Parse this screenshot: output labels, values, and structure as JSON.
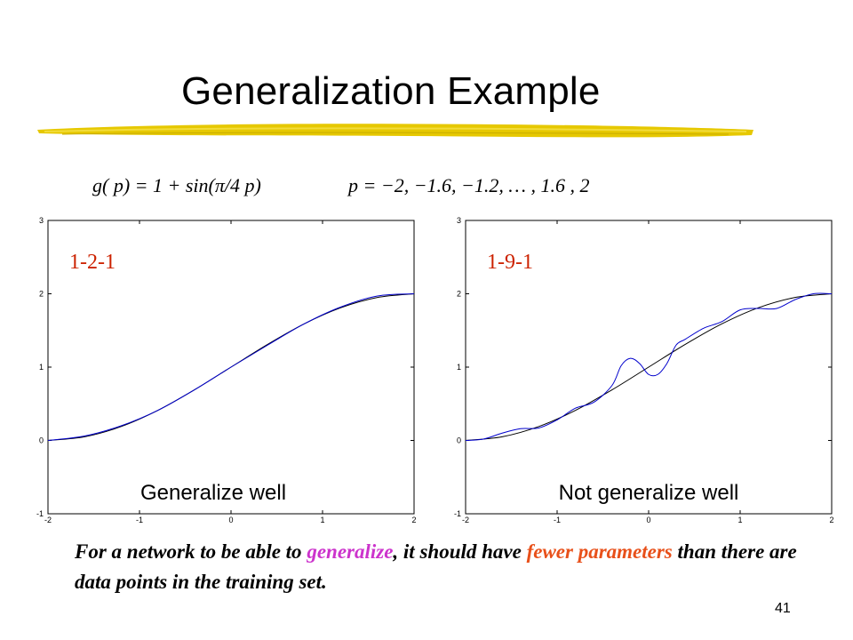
{
  "slide": {
    "title": "Generalization Example",
    "formula_left": "g( p)  =  1 + sin(π/4 p)",
    "formula_right": "p  = −2, −1.6, −1.2, … , 1.6 , 2",
    "statement": {
      "part1": "For a network to be able to ",
      "highlight1": "generalize",
      "part2": ", it should have ",
      "highlight2": "fewer parameters",
      "part3": " than there are data points in the training set."
    },
    "page_number": "41",
    "colors": {
      "accent_red": "#cc2200",
      "pink": "#cc33cc",
      "orange": "#e8501a",
      "curve_blue": "#0000cc",
      "underline_yellow": "#e6c800"
    }
  },
  "chart_data": [
    {
      "type": "line",
      "label": "1-2-1",
      "caption": "Generalize well",
      "xlim": [
        -2,
        2
      ],
      "ylim": [
        -1,
        3
      ],
      "xticks": [
        "-2",
        "-1",
        "0",
        "1",
        "2"
      ],
      "yticks": [
        "-1",
        "0",
        "1",
        "2",
        "3"
      ],
      "series": [
        {
          "color": "#000000",
          "x": [
            -2,
            -1.6,
            -1.2,
            -0.8,
            -0.4,
            0,
            0.4,
            0.8,
            1.2,
            1.6,
            2
          ],
          "y": [
            0,
            0.05,
            0.19,
            0.41,
            0.69,
            1,
            1.31,
            1.59,
            1.81,
            1.95,
            2
          ]
        },
        {
          "color": "#0000cc",
          "x": [
            -2,
            -1.6,
            -1.2,
            -0.8,
            -0.4,
            0,
            0.4,
            0.8,
            1.2,
            1.6,
            2
          ],
          "y": [
            0,
            0.06,
            0.2,
            0.41,
            0.69,
            1,
            1.3,
            1.59,
            1.82,
            1.97,
            2
          ]
        }
      ]
    },
    {
      "type": "line",
      "label": "1-9-1",
      "caption": "Not generalize well",
      "xlim": [
        -2,
        2
      ],
      "ylim": [
        -1,
        3
      ],
      "xticks": [
        "-2",
        "-1",
        "0",
        "1",
        "2"
      ],
      "yticks": [
        "-1",
        "0",
        "1",
        "2",
        "3"
      ],
      "series": [
        {
          "color": "#000000",
          "x": [
            -2,
            -1.6,
            -1.2,
            -0.8,
            -0.4,
            0,
            0.4,
            0.8,
            1.2,
            1.6,
            2
          ],
          "y": [
            0,
            0.05,
            0.19,
            0.41,
            0.69,
            1,
            1.31,
            1.59,
            1.81,
            1.95,
            2
          ]
        },
        {
          "color": "#0000cc",
          "x": [
            -2,
            -1.8,
            -1.6,
            -1.4,
            -1.2,
            -1.0,
            -0.8,
            -0.6,
            -0.4,
            -0.3,
            -0.2,
            -0.1,
            0,
            0.1,
            0.2,
            0.3,
            0.4,
            0.6,
            0.8,
            1.0,
            1.2,
            1.4,
            1.6,
            1.8,
            2
          ],
          "y": [
            0,
            0.02,
            0.1,
            0.16,
            0.17,
            0.28,
            0.44,
            0.52,
            0.75,
            1.02,
            1.12,
            1.05,
            0.9,
            0.9,
            1.05,
            1.3,
            1.38,
            1.53,
            1.62,
            1.78,
            1.8,
            1.8,
            1.92,
            2.0,
            2
          ]
        }
      ]
    }
  ]
}
